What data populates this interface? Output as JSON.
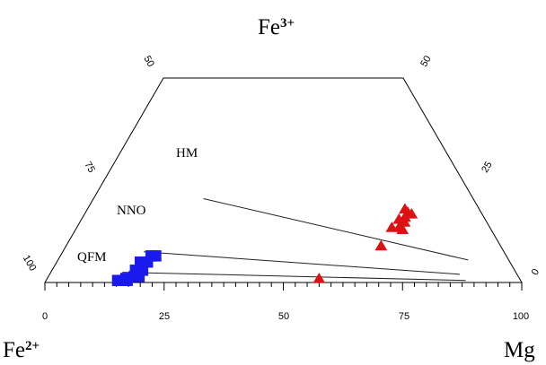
{
  "chart_data": {
    "type": "scatter",
    "apex_labels": {
      "top": {
        "main": "Fe",
        "superscript": "3+"
      },
      "left": {
        "main": "Fe",
        "superscript": "2+"
      },
      "right": {
        "main": "Mg",
        "superscript": ""
      }
    },
    "bottom_axis_ticks": [
      "0",
      "25",
      "50",
      "75",
      "100"
    ],
    "left_edge_ticks": [
      "50",
      "75",
      "100"
    ],
    "right_edge_ticks": [
      "50",
      "25",
      "0"
    ],
    "buffer_labels": [
      "HM",
      "NNO",
      "QFM"
    ],
    "buffer_lines": [
      {
        "label": "HM",
        "from": [
          23,
          20.5
        ],
        "to": [
          86,
          5.5
        ]
      },
      {
        "label": "NNO",
        "from": [
          17,
          7.5
        ],
        "to": [
          86,
          2.0
        ]
      },
      {
        "label": "QFM",
        "from": [
          15,
          2.5
        ],
        "to": [
          88,
          0.5
        ]
      }
    ],
    "series": [
      {
        "marker": "square",
        "color": "#1a1aee",
        "points": [
          [
            17.5,
            3.0
          ],
          [
            19.0,
            3.0
          ],
          [
            17.5,
            5.0
          ],
          [
            19.0,
            5.0
          ],
          [
            19.0,
            6.5
          ],
          [
            20.0,
            6.5
          ],
          [
            18.0,
            1.5
          ],
          [
            19.0,
            1.5
          ],
          [
            15.0,
            0.5
          ],
          [
            16.0,
            0.5
          ],
          [
            16.5,
            1.0
          ],
          [
            17.0,
            0.5
          ]
        ]
      },
      {
        "marker": "triangle",
        "color": "#dd1111",
        "points": [
          [
            66.5,
            18.0
          ],
          [
            67.5,
            17.2
          ],
          [
            68.5,
            16.8
          ],
          [
            67.5,
            16.0
          ],
          [
            66.5,
            15.5
          ],
          [
            68.0,
            14.8
          ],
          [
            66.0,
            13.5
          ],
          [
            67.5,
            13.5
          ],
          [
            68.5,
            13.0
          ],
          [
            66.0,
            9.0
          ],
          [
            57.0,
            1.0
          ]
        ]
      }
    ]
  }
}
